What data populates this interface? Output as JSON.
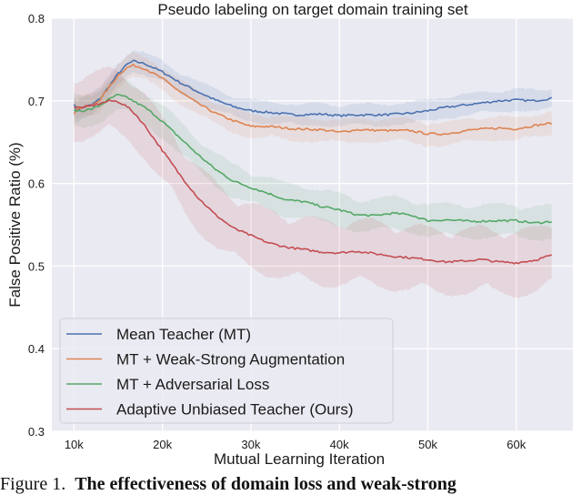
{
  "chart_data": {
    "type": "line",
    "title": "Pseudo labeling on target domain training set",
    "xlabel": "Mutual Learning Iteration",
    "ylabel": "False Positive Ratio (%)",
    "xlim": [
      7500,
      66400
    ],
    "ylim": [
      0.3,
      0.8
    ],
    "xticks": [
      10000,
      20000,
      30000,
      40000,
      50000,
      60000
    ],
    "xtick_labels": [
      "10k",
      "20k",
      "30k",
      "40k",
      "50k",
      "60k"
    ],
    "yticks": [
      0.3,
      0.4,
      0.5,
      0.6,
      0.7,
      0.8
    ],
    "ytick_labels": [
      "0.3",
      "0.4",
      "0.5",
      "0.6",
      "0.7",
      "0.8"
    ],
    "grid": true,
    "legend_position": "lower left",
    "series": [
      {
        "name": "Mean Teacher (MT)",
        "color": "#4c72b0",
        "band": 0.012,
        "x": [
          10000,
          10300,
          11000,
          12000,
          13000,
          14000,
          15000,
          16000,
          16700,
          18000,
          20000,
          22000,
          24000,
          26000,
          28000,
          30000,
          32000,
          35000,
          38000,
          40000,
          42000,
          45000,
          48000,
          50000,
          52000,
          55000,
          58000,
          60000,
          62000,
          64000
        ],
        "y": [
          0.697,
          0.688,
          0.692,
          0.695,
          0.703,
          0.718,
          0.733,
          0.744,
          0.748,
          0.745,
          0.735,
          0.722,
          0.711,
          0.701,
          0.693,
          0.688,
          0.686,
          0.683,
          0.684,
          0.682,
          0.683,
          0.683,
          0.685,
          0.688,
          0.692,
          0.696,
          0.7,
          0.701,
          0.7,
          0.703
        ]
      },
      {
        "name": "MT + Weak-Strong Augmentation",
        "color": "#dd8452",
        "band": 0.013,
        "x": [
          10000,
          10300,
          11000,
          12000,
          13000,
          14000,
          15000,
          16000,
          16700,
          18000,
          20000,
          22000,
          24000,
          26000,
          28000,
          30000,
          32000,
          35000,
          38000,
          40000,
          42000,
          45000,
          48000,
          50000,
          52000,
          55000,
          58000,
          60000,
          62000,
          64000
        ],
        "y": [
          0.685,
          0.69,
          0.692,
          0.694,
          0.702,
          0.717,
          0.731,
          0.74,
          0.743,
          0.739,
          0.727,
          0.711,
          0.697,
          0.685,
          0.676,
          0.669,
          0.669,
          0.666,
          0.665,
          0.662,
          0.665,
          0.664,
          0.664,
          0.66,
          0.66,
          0.665,
          0.667,
          0.666,
          0.67,
          0.673
        ]
      },
      {
        "name": "MT + Adversarial Loss",
        "color": "#55a868",
        "band": 0.018,
        "x": [
          10000,
          11000,
          12000,
          13000,
          14000,
          14900,
          16000,
          17000,
          18000,
          19000,
          20000,
          22000,
          24000,
          26000,
          28000,
          30000,
          32000,
          34000,
          36000,
          38000,
          40000,
          42000,
          44000,
          46000,
          48000,
          50000,
          52000,
          55000,
          58000,
          60000,
          62000,
          64000
        ],
        "y": [
          0.688,
          0.688,
          0.69,
          0.695,
          0.702,
          0.707,
          0.704,
          0.698,
          0.692,
          0.684,
          0.675,
          0.655,
          0.635,
          0.617,
          0.603,
          0.595,
          0.588,
          0.58,
          0.578,
          0.572,
          0.568,
          0.562,
          0.561,
          0.564,
          0.562,
          0.555,
          0.556,
          0.554,
          0.555,
          0.555,
          0.552,
          0.554
        ]
      },
      {
        "name": "Adaptive Unbiased Teacher (Ours)",
        "color": "#c44e52",
        "band": 0.035,
        "x": [
          10000,
          11000,
          12000,
          13000,
          14000,
          15000,
          16000,
          17000,
          18000,
          19000,
          20000,
          22000,
          24000,
          26000,
          28000,
          30000,
          32000,
          34000,
          36000,
          38000,
          40000,
          42000,
          44000,
          46000,
          48000,
          50000,
          52000,
          54000,
          56000,
          58000,
          60000,
          62000,
          64000
        ],
        "y": [
          0.692,
          0.692,
          0.694,
          0.697,
          0.7,
          0.699,
          0.693,
          0.683,
          0.67,
          0.655,
          0.64,
          0.61,
          0.583,
          0.562,
          0.546,
          0.537,
          0.528,
          0.523,
          0.52,
          0.517,
          0.516,
          0.518,
          0.515,
          0.512,
          0.51,
          0.508,
          0.505,
          0.506,
          0.508,
          0.505,
          0.504,
          0.507,
          0.513
        ]
      }
    ]
  },
  "caption": {
    "prefix": "Figure 1.",
    "bold_text": "The effectiveness of domain loss and weak-strong"
  }
}
